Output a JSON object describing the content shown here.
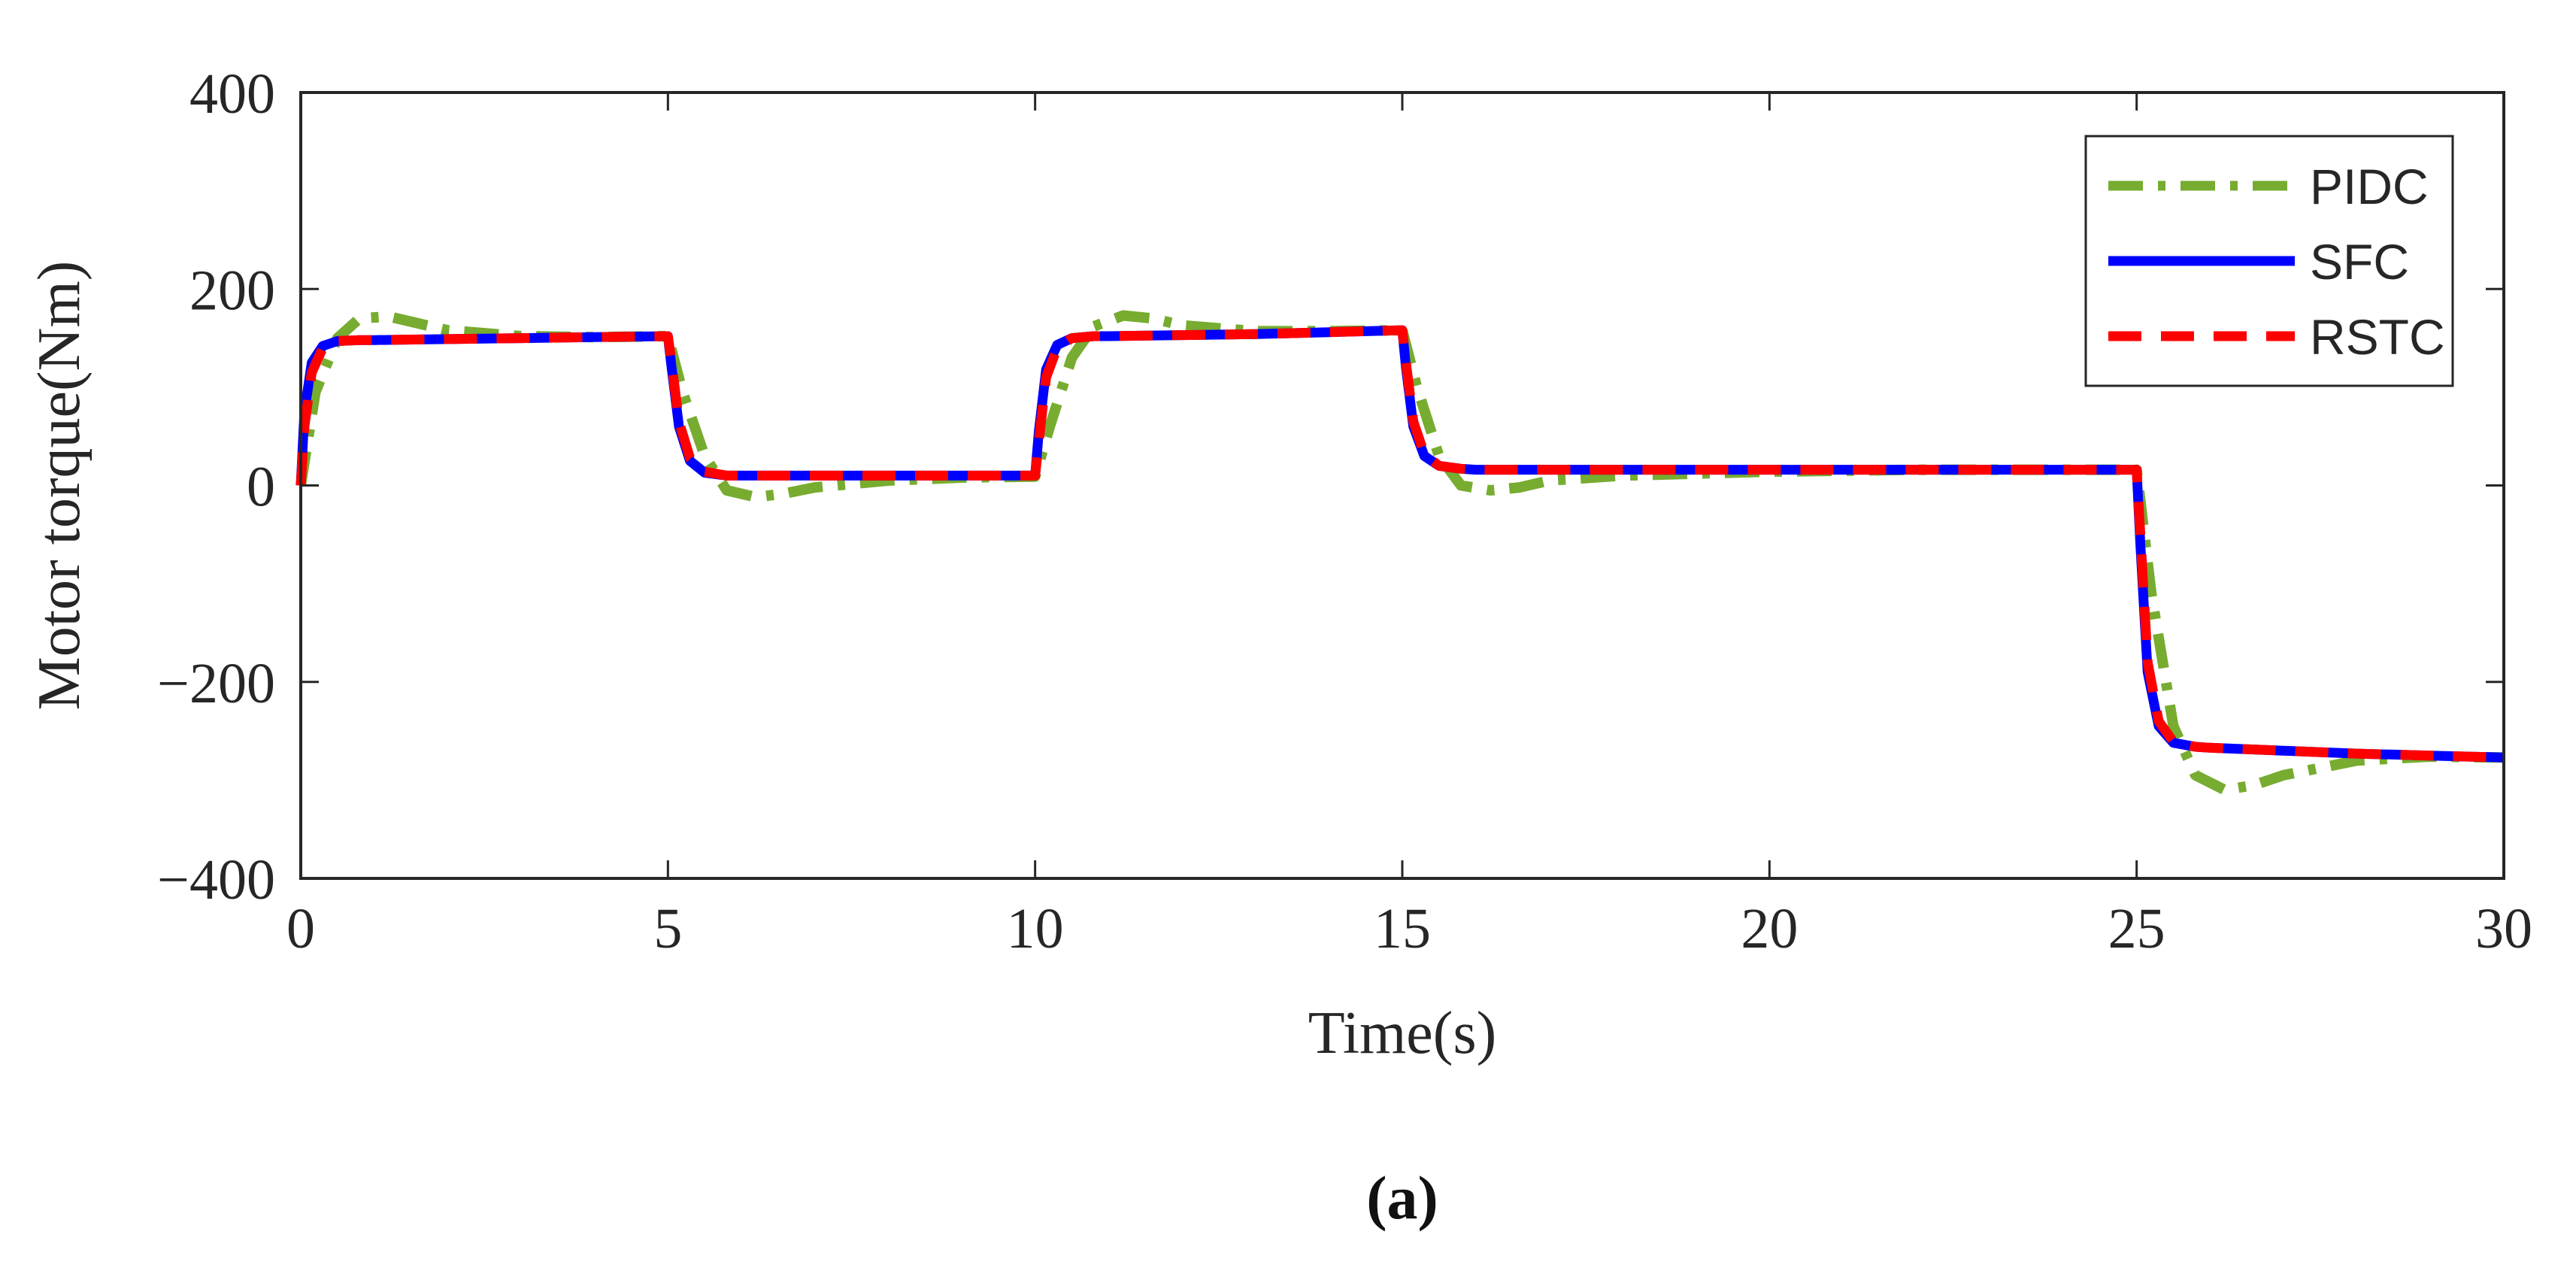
{
  "chart_data": {
    "type": "line",
    "title": "",
    "xlabel": "Time(s)",
    "ylabel": "Motor torque(Nm)",
    "xlim": [
      0,
      30
    ],
    "ylim": [
      -400,
      400
    ],
    "xticks": [
      0,
      5,
      10,
      15,
      20,
      25,
      30
    ],
    "yticks": [
      -400,
      -200,
      0,
      200,
      400
    ],
    "xtick_labels": [
      "0",
      "5",
      "10",
      "15",
      "20",
      "25",
      "30"
    ],
    "ytick_labels": [
      "−400",
      "−200",
      "0",
      "200",
      "400"
    ],
    "grid": false,
    "legend_position": "top-right",
    "caption": "(a)",
    "series": [
      {
        "name": "PIDC",
        "color": "#77AC30",
        "style": "dash-dot",
        "x": [
          0,
          0.2,
          0.5,
          0.8,
          1.2,
          1.6,
          2.0,
          3.0,
          4.0,
          5.0,
          5.2,
          5.5,
          5.8,
          6.2,
          6.6,
          7.0,
          8.0,
          9.0,
          10.0,
          10.2,
          10.5,
          10.8,
          11.2,
          11.6,
          12.0,
          13.0,
          14.0,
          15.0,
          15.2,
          15.5,
          15.8,
          16.2,
          16.6,
          17.0,
          18.0,
          20.0,
          22.0,
          25.0,
          25.2,
          25.5,
          25.8,
          26.2,
          26.6,
          27.0,
          28.0,
          29.0,
          30.0
        ],
        "y": [
          0,
          95,
          150,
          170,
          172,
          165,
          158,
          152,
          151,
          152,
          95,
          30,
          -5,
          -12,
          -8,
          -2,
          5,
          8,
          9,
          60,
          130,
          162,
          173,
          170,
          163,
          157,
          157,
          158,
          100,
          30,
          0,
          -5,
          -2,
          5,
          10,
          14,
          16,
          16,
          -110,
          -245,
          -295,
          -310,
          -305,
          -295,
          -280,
          -276,
          -277
        ]
      },
      {
        "name": "SFC",
        "color": "#0000FF",
        "style": "solid",
        "x": [
          0,
          0.05,
          0.15,
          0.3,
          0.5,
          0.8,
          1.0,
          2.0,
          3.0,
          4.0,
          5.0,
          5.05,
          5.15,
          5.3,
          5.5,
          5.8,
          6.0,
          7.0,
          8.0,
          9.0,
          10.0,
          10.05,
          10.15,
          10.3,
          10.5,
          10.8,
          11.0,
          12.0,
          13.0,
          14.0,
          15.0,
          15.05,
          15.15,
          15.3,
          15.5,
          15.8,
          16.0,
          18.0,
          20.0,
          22.0,
          24.0,
          25.0,
          25.05,
          25.15,
          25.3,
          25.5,
          25.8,
          26.0,
          27.0,
          28.0,
          29.0,
          30.0
        ],
        "y": [
          0,
          75,
          125,
          142,
          147,
          148,
          148,
          149,
          150,
          151,
          152,
          120,
          60,
          25,
          13,
          10,
          10,
          10,
          10,
          10,
          10,
          55,
          118,
          143,
          150,
          152,
          152,
          153,
          154,
          156,
          158,
          120,
          60,
          30,
          20,
          17,
          16,
          16,
          16,
          16,
          16,
          16,
          -60,
          -190,
          -245,
          -262,
          -266,
          -267,
          -270,
          -273,
          -275,
          -277
        ]
      },
      {
        "name": "RSTC",
        "color": "#FF0000",
        "style": "dashed",
        "x": [
          0,
          0.05,
          0.15,
          0.3,
          0.5,
          0.8,
          1.0,
          2.0,
          3.0,
          4.0,
          5.0,
          5.05,
          5.15,
          5.3,
          5.5,
          5.8,
          6.0,
          7.0,
          8.0,
          9.0,
          10.0,
          10.05,
          10.15,
          10.3,
          10.5,
          10.8,
          11.0,
          12.0,
          13.0,
          14.0,
          15.0,
          15.05,
          15.15,
          15.3,
          15.5,
          15.8,
          16.0,
          18.0,
          20.0,
          22.0,
          24.0,
          25.0,
          25.05,
          25.15,
          25.3,
          25.5,
          25.8,
          26.0,
          27.0,
          28.0,
          29.0,
          30.0
        ],
        "y": [
          0,
          60,
          115,
          140,
          147,
          148,
          148,
          149,
          150,
          151,
          152,
          125,
          65,
          28,
          14,
          10,
          10,
          10,
          10,
          10,
          10,
          45,
          110,
          140,
          150,
          152,
          152,
          153,
          154,
          156,
          158,
          125,
          65,
          32,
          20,
          17,
          16,
          16,
          16,
          16,
          16,
          16,
          -50,
          -180,
          -240,
          -261,
          -266,
          -267,
          -270,
          -273,
          -275,
          -277
        ]
      }
    ]
  }
}
